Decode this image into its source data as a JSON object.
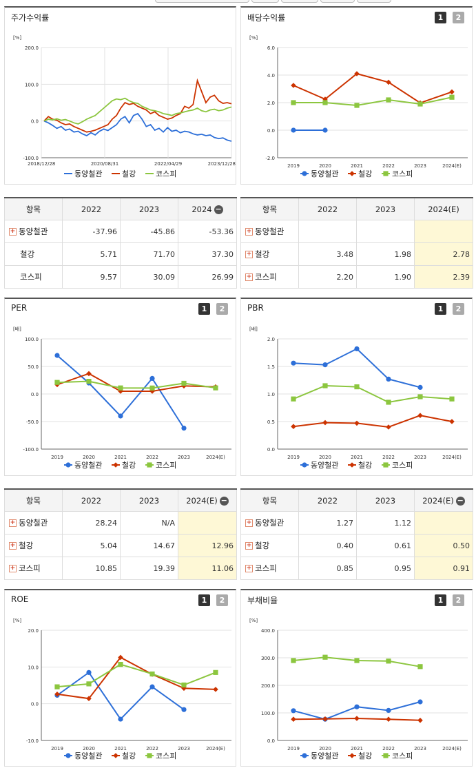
{
  "colors": {
    "dongyang": "#2d6fd8",
    "steel": "#cc3300",
    "kospi": "#8cc63f"
  },
  "legend": [
    "동양철관",
    "철강",
    "코스피"
  ],
  "pages": [
    "1",
    "2"
  ],
  "panels": {
    "stock_return": {
      "title": "주가수익률",
      "unit": "[%]"
    },
    "dividend": {
      "title": "배당수익률",
      "unit": "[%]"
    },
    "per": {
      "title": "PER",
      "unit": "[배]"
    },
    "pbr": {
      "title": "PBR",
      "unit": "[배]"
    },
    "roe": {
      "title": "ROE",
      "unit": "[%]"
    },
    "debt": {
      "title": "부채비율",
      "unit": "[%]"
    }
  },
  "tables": {
    "stock_return": {
      "headers": [
        "항목",
        "2022",
        "2023",
        "2024"
      ],
      "rows": [
        {
          "name": "동양철관",
          "values": [
            "-37.96",
            "-45.86",
            "-53.36"
          ]
        },
        {
          "name": "철강",
          "values": [
            "5.71",
            "71.70",
            "37.30"
          ]
        },
        {
          "name": "코스피",
          "values": [
            "9.57",
            "30.09",
            "26.99"
          ]
        }
      ]
    },
    "dividend": {
      "headers": [
        "항목",
        "2022",
        "2023",
        "2024(E)"
      ],
      "rows": [
        {
          "name": "동양철관",
          "values": [
            "",
            "",
            ""
          ]
        },
        {
          "name": "철강",
          "values": [
            "3.48",
            "1.98",
            "2.78"
          ]
        },
        {
          "name": "코스피",
          "values": [
            "2.20",
            "1.90",
            "2.39"
          ]
        }
      ]
    },
    "per": {
      "headers": [
        "항목",
        "2022",
        "2023",
        "2024(E)"
      ],
      "rows": [
        {
          "name": "동양철관",
          "values": [
            "28.24",
            "N/A",
            ""
          ]
        },
        {
          "name": "철강",
          "values": [
            "5.04",
            "14.67",
            "12.96"
          ]
        },
        {
          "name": "코스피",
          "values": [
            "10.85",
            "19.39",
            "11.06"
          ]
        }
      ]
    },
    "pbr": {
      "headers": [
        "항목",
        "2022",
        "2023",
        "2024(E)"
      ],
      "rows": [
        {
          "name": "동양철관",
          "values": [
            "1.27",
            "1.12",
            ""
          ]
        },
        {
          "name": "철강",
          "values": [
            "0.40",
            "0.61",
            "0.50"
          ]
        },
        {
          "name": "코스피",
          "values": [
            "0.85",
            "0.95",
            "0.91"
          ]
        }
      ]
    }
  },
  "chart_data": [
    {
      "id": "stock_return",
      "type": "line",
      "ylim": [
        -100,
        200
      ],
      "yticks": [
        "200.0",
        "100.0",
        "0.0",
        "-100.0"
      ],
      "xticks": [
        "2018/12/28",
        "2020/08/31",
        "2022/04/29",
        "2023/12/28"
      ],
      "series": [
        {
          "name": "동양철관",
          "values": [
            0,
            -5,
            -12,
            -20,
            -15,
            -25,
            -22,
            -30,
            -28,
            -35,
            -40,
            -32,
            -38,
            -28,
            -22,
            -26,
            -18,
            -10,
            5,
            12,
            -5,
            15,
            20,
            5,
            -15,
            -10,
            -25,
            -20,
            -30,
            -18,
            -28,
            -25,
            -32,
            -28,
            -30,
            -35,
            -38,
            -36,
            -40,
            -38,
            -45,
            -48,
            -46,
            -52,
            -55
          ]
        },
        {
          "name": "철강",
          "values": [
            0,
            12,
            5,
            2,
            -5,
            -10,
            -8,
            -15,
            -20,
            -25,
            -30,
            -28,
            -25,
            -20,
            -15,
            -10,
            5,
            15,
            35,
            50,
            45,
            48,
            40,
            35,
            30,
            20,
            25,
            15,
            10,
            5,
            8,
            15,
            20,
            40,
            35,
            45,
            110,
            80,
            50,
            65,
            70,
            55,
            48,
            50,
            47
          ]
        },
        {
          "name": "코스피",
          "values": [
            0,
            5,
            3,
            6,
            2,
            4,
            0,
            -5,
            -8,
            -2,
            5,
            10,
            15,
            25,
            35,
            45,
            55,
            60,
            58,
            62,
            55,
            50,
            48,
            40,
            35,
            30,
            28,
            25,
            20,
            18,
            15,
            20,
            22,
            25,
            28,
            30,
            35,
            28,
            25,
            30,
            32,
            28,
            30,
            35,
            38
          ]
        }
      ]
    },
    {
      "id": "dividend",
      "type": "line",
      "categories": [
        "2019",
        "2020",
        "2021",
        "2022",
        "2023",
        "2024(E)"
      ],
      "ylim": [
        -2,
        6
      ],
      "yticks": [
        "6.0",
        "4.0",
        "2.0",
        "0.0",
        "-2.0"
      ],
      "series": [
        {
          "name": "동양철관",
          "values": [
            0.0,
            0.0,
            null,
            null,
            null,
            null
          ]
        },
        {
          "name": "철강",
          "values": [
            3.25,
            2.25,
            4.1,
            3.48,
            1.98,
            2.78
          ]
        },
        {
          "name": "코스피",
          "values": [
            2.0,
            2.0,
            1.8,
            2.2,
            1.9,
            2.39
          ]
        }
      ]
    },
    {
      "id": "per",
      "type": "line",
      "categories": [
        "2019",
        "2020",
        "2021",
        "2022",
        "2023",
        "2024(E)"
      ],
      "ylim": [
        -100,
        100
      ],
      "yticks": [
        "100.0",
        "50.0",
        "0.0",
        "-50.0",
        "-100.0"
      ],
      "series": [
        {
          "name": "동양철관",
          "values": [
            70,
            20,
            -40,
            28.24,
            -62,
            null
          ]
        },
        {
          "name": "철강",
          "values": [
            17,
            37,
            5,
            5.04,
            14.67,
            12.96
          ]
        },
        {
          "name": "코스피",
          "values": [
            21,
            23,
            11,
            10.85,
            19.39,
            11.06
          ]
        }
      ]
    },
    {
      "id": "pbr",
      "type": "line",
      "categories": [
        "2019",
        "2020",
        "2021",
        "2022",
        "2023",
        "2024(E)"
      ],
      "ylim": [
        0,
        2
      ],
      "yticks": [
        "2.0",
        "1.5",
        "1.0",
        "0.5",
        "0.0"
      ],
      "series": [
        {
          "name": "동양철관",
          "values": [
            1.56,
            1.53,
            1.82,
            1.27,
            1.12,
            null
          ]
        },
        {
          "name": "철강",
          "values": [
            0.41,
            0.48,
            0.47,
            0.4,
            0.61,
            0.5
          ]
        },
        {
          "name": "코스피",
          "values": [
            0.91,
            1.15,
            1.13,
            0.85,
            0.95,
            0.91
          ]
        }
      ]
    },
    {
      "id": "roe",
      "type": "line",
      "categories": [
        "2019",
        "2020",
        "2021",
        "2022",
        "2023",
        "2024(E)"
      ],
      "ylim": [
        -10,
        20
      ],
      "yticks": [
        "20.0",
        "10.0",
        "0.0",
        "-10.0"
      ],
      "series": [
        {
          "name": "동양철관",
          "values": [
            2.3,
            8.5,
            -4.2,
            4.6,
            -1.6,
            null
          ]
        },
        {
          "name": "철강",
          "values": [
            2.6,
            1.4,
            12.6,
            8.0,
            4.2,
            3.9
          ]
        },
        {
          "name": "코스피",
          "values": [
            4.6,
            5.4,
            10.7,
            8.1,
            5.1,
            8.5
          ]
        }
      ]
    },
    {
      "id": "debt",
      "type": "line",
      "categories": [
        "2019",
        "2020",
        "2021",
        "2022",
        "2023",
        "2024(E)"
      ],
      "ylim": [
        0,
        400
      ],
      "yticks": [
        "400.0",
        "300.0",
        "200.0",
        "100.0",
        "0.0"
      ],
      "series": [
        {
          "name": "동양철관",
          "values": [
            108,
            77,
            122,
            109,
            140,
            null
          ]
        },
        {
          "name": "철강",
          "values": [
            77,
            78,
            80,
            77,
            73,
            null
          ]
        },
        {
          "name": "코스피",
          "values": [
            290,
            302,
            290,
            288,
            268,
            null
          ]
        }
      ]
    }
  ]
}
